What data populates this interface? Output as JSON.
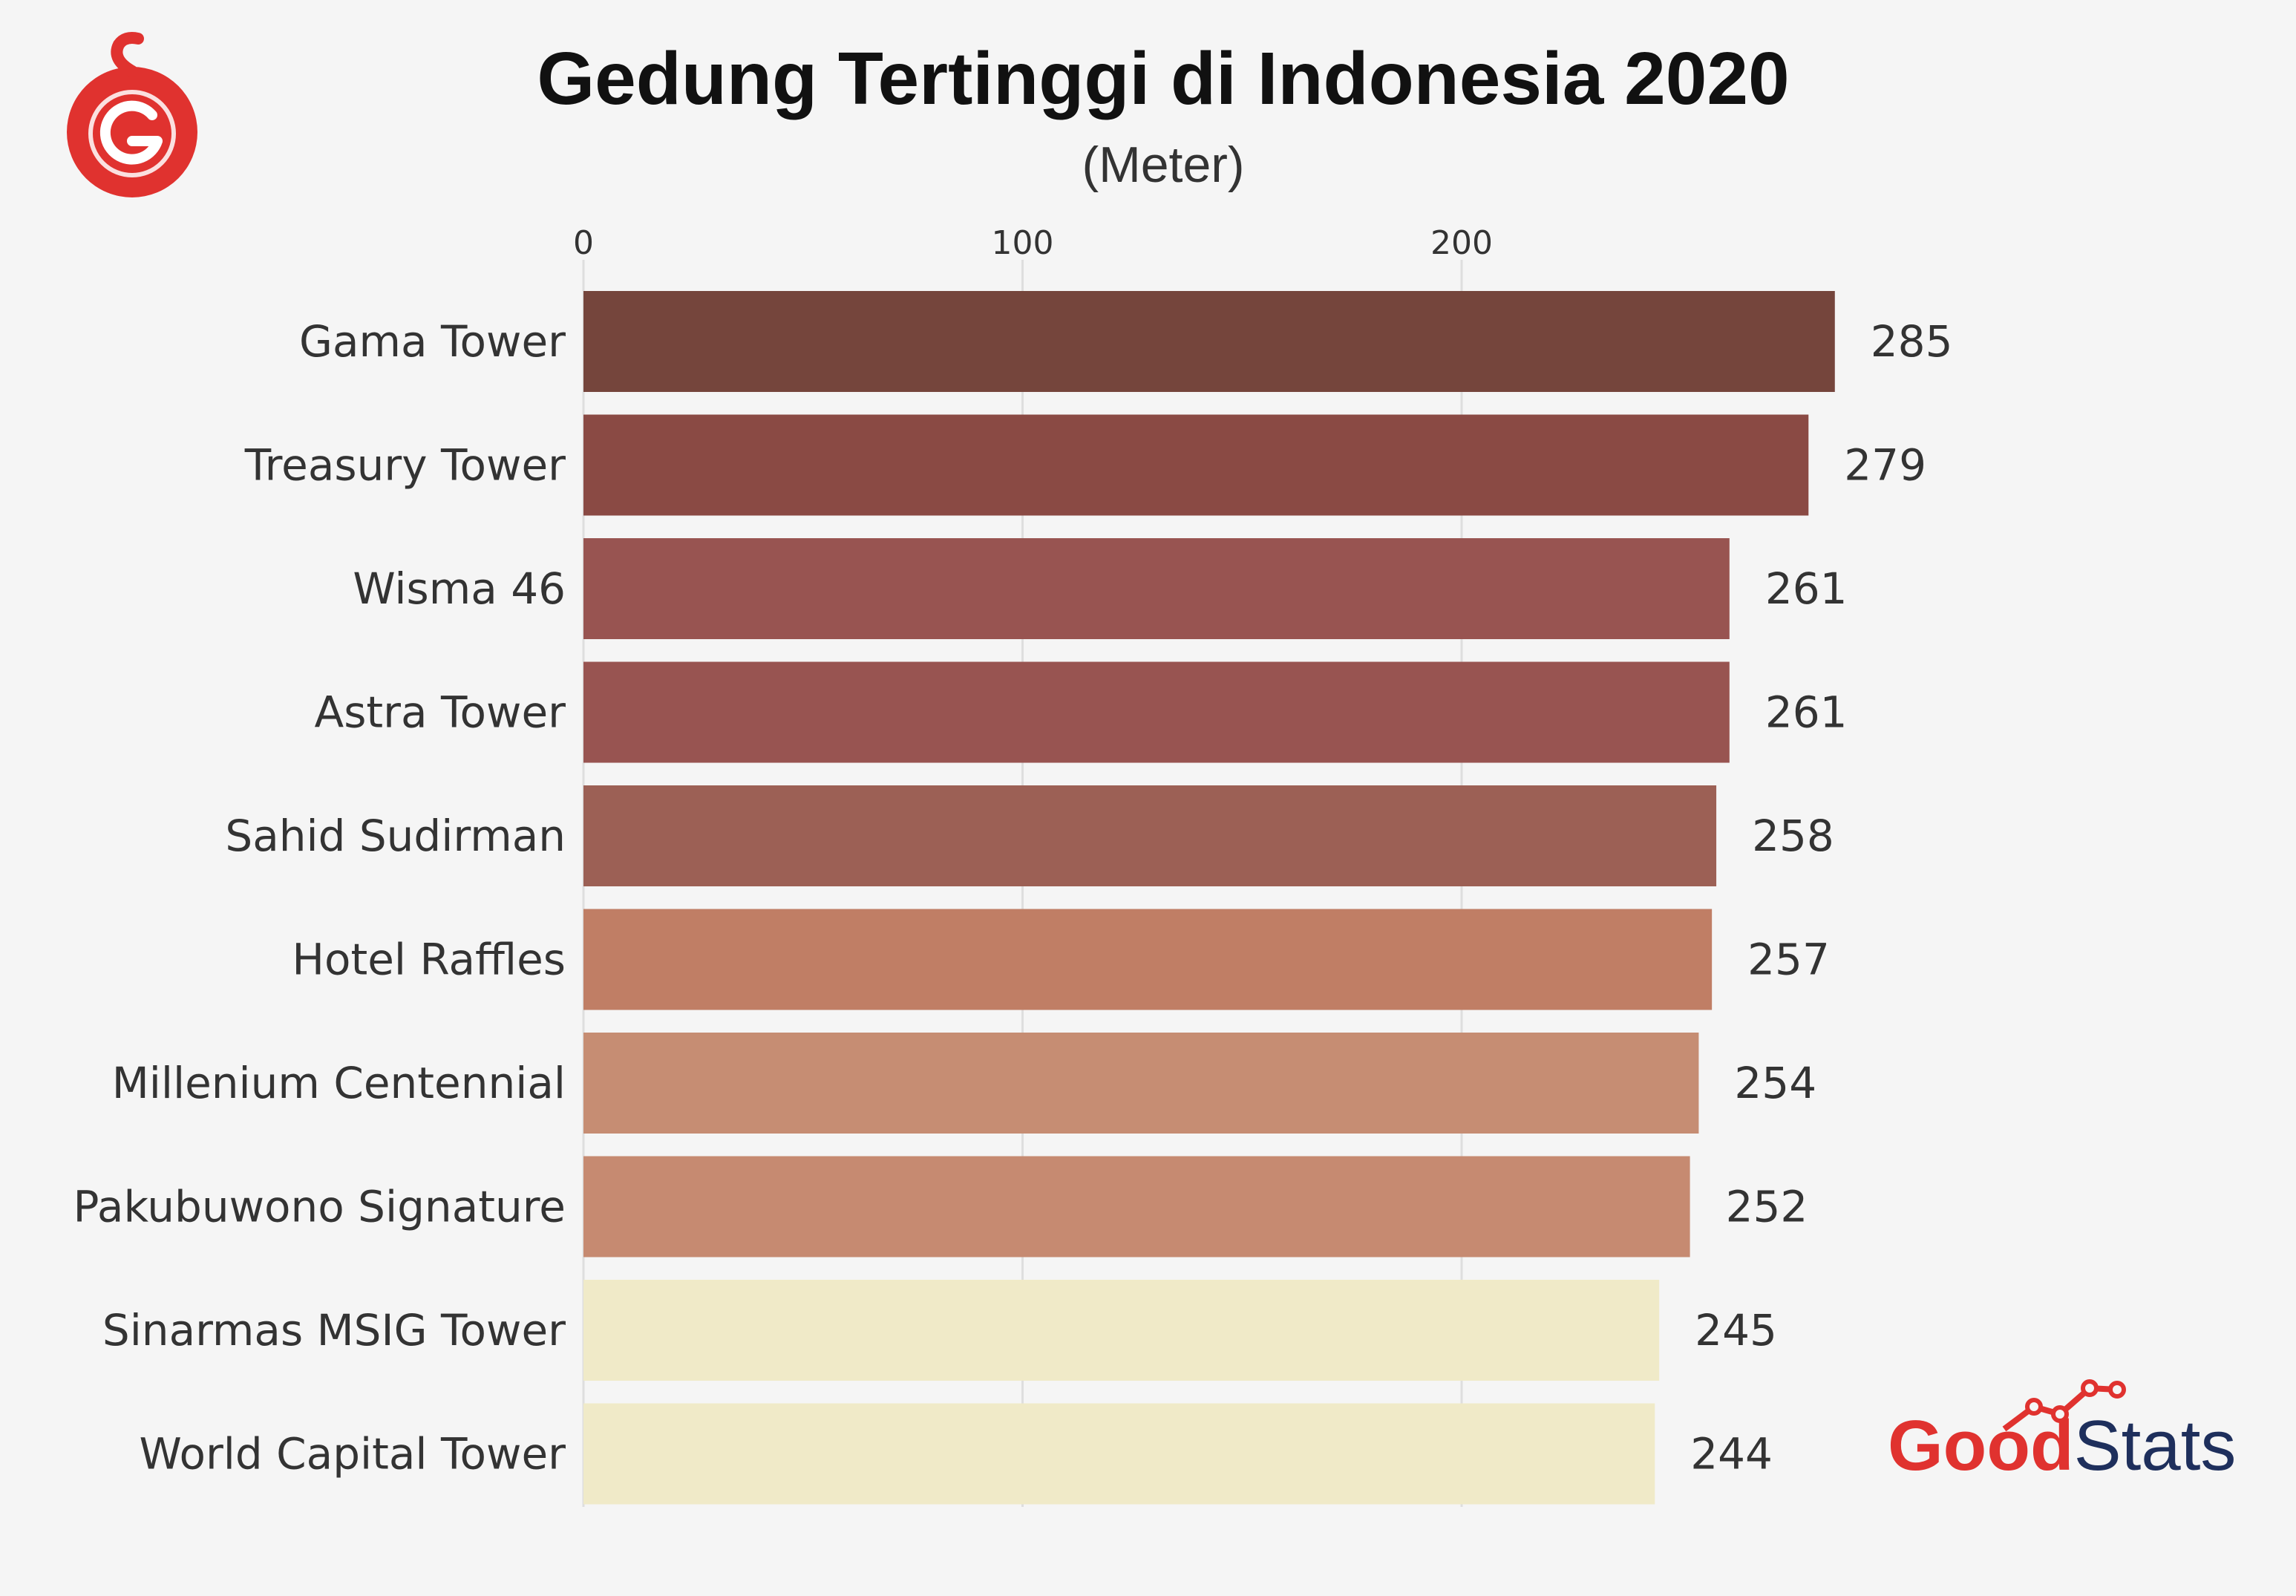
{
  "chart_data": {
    "type": "bar",
    "orientation": "horizontal",
    "title": "Gedung Tertinggi di Indonesia 2020",
    "subtitle": "(Meter)",
    "xlim": [
      0,
      285
    ],
    "xticks": [
      0,
      100,
      200
    ],
    "grid": true,
    "categories": [
      "Gama Tower",
      "Treasury Tower",
      "Wisma 46",
      "Astra Tower",
      "Sahid Sudirman",
      "Hotel Raffles",
      "Millenium Centennial",
      "Pakubuwono Signature",
      "Sinarmas MSIG Tower",
      "World Capital Tower"
    ],
    "values": [
      285,
      279,
      261,
      261,
      258,
      257,
      254,
      252,
      245,
      244
    ],
    "colors": [
      "#75453c",
      "#8a4a44",
      "#985451",
      "#985451",
      "#9c6055",
      "#c07e65",
      "#c68d73",
      "#c68a71",
      "#f0eac8",
      "#f0eac8"
    ]
  },
  "branding": {
    "logo_good": "Good",
    "logo_stats": "Stats",
    "colors": {
      "red": "#e0322f",
      "navy": "#1e2f5c"
    },
    "top_left_icon": "gnfi-logo-icon"
  }
}
